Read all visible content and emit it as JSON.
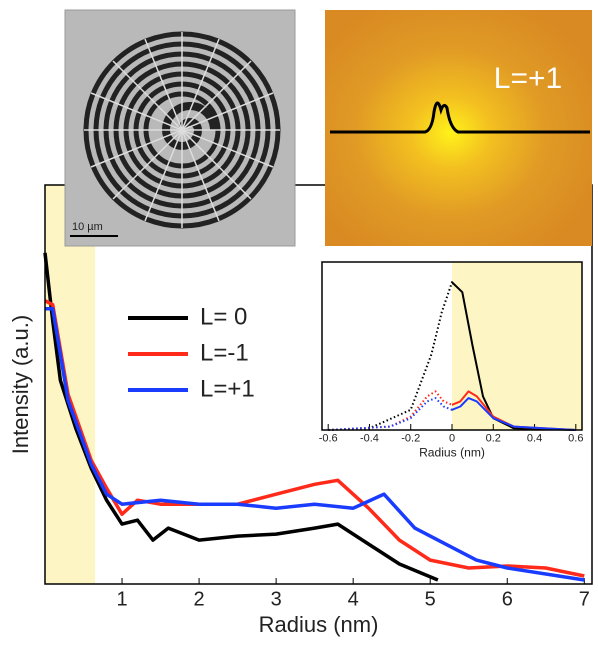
{
  "images": {
    "sem_scalebar": "10 µm",
    "map_label": "L=+1"
  },
  "chart_data": [
    {
      "type": "line",
      "x_label": "Radius (nm)",
      "y_label": "Intensity (a.u.)",
      "xlim": [
        0,
        7.1
      ],
      "ylim": [
        0,
        1
      ],
      "xticks": [
        1,
        2,
        3,
        4,
        5,
        6,
        7
      ],
      "shaded_region": [
        0,
        0.65
      ],
      "legend": "upper center",
      "series": [
        {
          "name": "L= 0",
          "color": "#000000",
          "x": [
            0,
            0.1,
            0.2,
            0.4,
            0.6,
            0.8,
            1.0,
            1.2,
            1.4,
            1.6,
            2.0,
            2.5,
            3.0,
            3.5,
            3.8,
            4.2,
            4.6,
            5.1
          ],
          "values": [
            0.83,
            0.66,
            0.51,
            0.39,
            0.29,
            0.21,
            0.15,
            0.16,
            0.11,
            0.14,
            0.11,
            0.12,
            0.125,
            0.14,
            0.15,
            0.1,
            0.05,
            0.01
          ]
        },
        {
          "name": "L=-1",
          "color": "#ff2a1a",
          "x": [
            0,
            0.1,
            0.3,
            0.6,
            0.8,
            1.0,
            1.2,
            1.5,
            2.0,
            2.5,
            3.0,
            3.5,
            3.8,
            4.2,
            4.6,
            5.0,
            5.5,
            6.0,
            6.5,
            7.0
          ],
          "values": [
            0.71,
            0.7,
            0.475,
            0.31,
            0.24,
            0.175,
            0.21,
            0.2,
            0.2,
            0.2,
            0.225,
            0.25,
            0.26,
            0.19,
            0.11,
            0.06,
            0.04,
            0.045,
            0.04,
            0.02
          ]
        },
        {
          "name": "L=+1",
          "color": "#1a3cff",
          "x": [
            0,
            0.1,
            0.3,
            0.6,
            0.8,
            1.0,
            1.5,
            2.0,
            2.5,
            3.0,
            3.5,
            4.0,
            4.4,
            4.8,
            5.2,
            5.6,
            6.0,
            7.0
          ],
          "values": [
            0.69,
            0.69,
            0.46,
            0.3,
            0.225,
            0.2,
            0.21,
            0.2,
            0.2,
            0.19,
            0.2,
            0.19,
            0.225,
            0.14,
            0.1,
            0.06,
            0.04,
            0.01
          ]
        }
      ]
    },
    {
      "type": "line",
      "x_label": "Radius (nm)",
      "xlim": [
        -0.63,
        0.63
      ],
      "ylim": [
        0,
        1
      ],
      "xticks": [
        -0.6,
        -0.4,
        -0.2,
        0,
        0.2,
        0.4,
        0.6
      ],
      "shaded_region": [
        0,
        0.63
      ],
      "series": [
        {
          "color": "#000000",
          "x": [
            -0.6,
            -0.4,
            -0.2,
            -0.1,
            -0.05,
            0,
            0.05,
            0.1,
            0.15,
            0.2,
            0.3,
            0.6
          ],
          "values": [
            0,
            0.01,
            0.12,
            0.45,
            0.7,
            0.88,
            0.82,
            0.5,
            0.2,
            0.07,
            0.01,
            0
          ]
        },
        {
          "color": "#ff2a1a",
          "x": [
            -0.6,
            -0.3,
            -0.2,
            -0.12,
            -0.08,
            -0.04,
            0,
            0.04,
            0.08,
            0.12,
            0.2,
            0.3,
            0.6
          ],
          "values": [
            0,
            0.02,
            0.08,
            0.2,
            0.23,
            0.17,
            0.15,
            0.17,
            0.23,
            0.2,
            0.08,
            0.02,
            0
          ]
        },
        {
          "color": "#1a3cff",
          "x": [
            -0.6,
            -0.3,
            -0.2,
            -0.12,
            -0.08,
            -0.04,
            0,
            0.04,
            0.08,
            0.12,
            0.2,
            0.3,
            0.6
          ],
          "values": [
            0,
            0.02,
            0.07,
            0.17,
            0.19,
            0.14,
            0.12,
            0.14,
            0.19,
            0.17,
            0.07,
            0.02,
            0
          ]
        }
      ]
    }
  ]
}
